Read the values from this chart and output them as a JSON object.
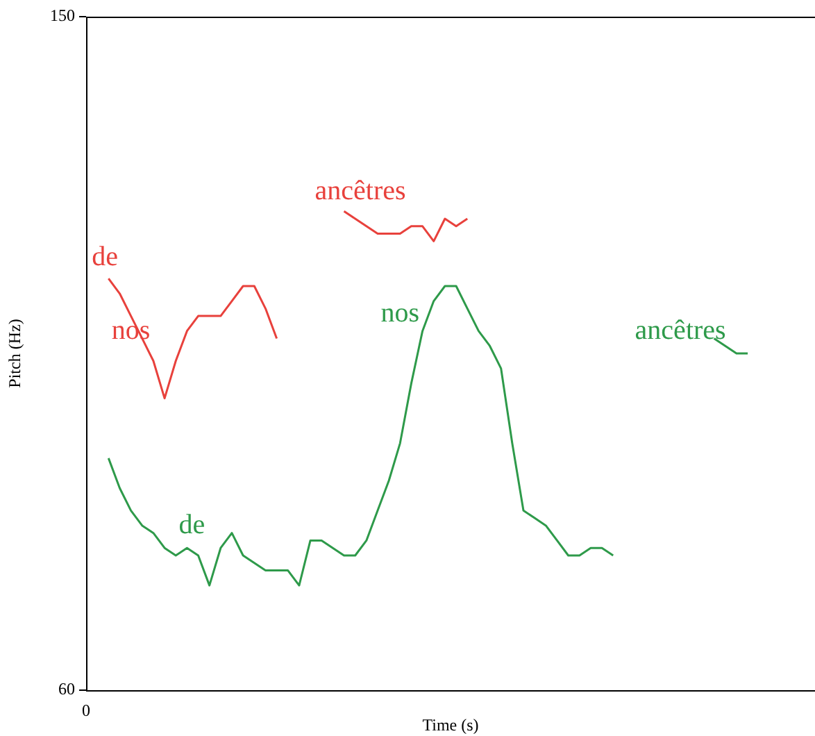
{
  "chart_data": {
    "type": "line",
    "xlabel": "Time (s)",
    "ylabel": "Pitch (Hz)",
    "categories": [
      "0",
      null,
      null,
      null,
      null,
      null,
      null,
      null,
      null,
      null,
      null,
      null,
      null,
      null,
      null,
      null,
      null,
      null,
      null,
      null,
      null,
      null,
      null,
      null,
      null,
      null,
      null,
      null,
      null,
      null,
      null,
      null,
      null,
      null,
      null,
      null,
      null,
      null,
      null,
      null,
      null,
      null,
      null,
      null,
      null,
      null,
      null,
      null,
      null,
      null,
      null,
      null,
      null,
      null,
      null,
      null,
      null,
      null,
      null,
      null,
      null,
      null,
      null,
      null,
      null,
      null
    ],
    "ylim": [
      60,
      150
    ],
    "yticks": [
      60,
      150
    ],
    "grid": false,
    "legend": false,
    "marker": "none",
    "annotations": [
      "de",
      "nos",
      "ancêtres",
      "de",
      "nos",
      "ancêtres"
    ],
    "series": [
      {
        "color": "#e8413c",
        "values": [
          null,
          null,
          115,
          113,
          110,
          107,
          104,
          99,
          104,
          108,
          110,
          110,
          110,
          112,
          114,
          114,
          111,
          107,
          null,
          null,
          null,
          null,
          null,
          null,
          null,
          null,
          null,
          null,
          null,
          null,
          null,
          null,
          null,
          null,
          null,
          null,
          null,
          null,
          null,
          null,
          null,
          null,
          null,
          null,
          null,
          null,
          null,
          null,
          null,
          null,
          null,
          null,
          null,
          null,
          null,
          null,
          null,
          null,
          null,
          null,
          null,
          null,
          null,
          null,
          null,
          null
        ]
      },
      {
        "color": "#e8413c",
        "values": [
          null,
          null,
          null,
          null,
          null,
          null,
          null,
          null,
          null,
          null,
          null,
          null,
          null,
          null,
          null,
          null,
          null,
          null,
          null,
          null,
          null,
          null,
          null,
          124,
          123,
          122,
          121,
          121,
          121,
          122,
          122,
          120,
          123,
          122,
          123,
          null,
          null,
          null,
          null,
          null,
          null,
          null,
          null,
          null,
          null,
          null,
          null,
          null,
          null,
          null,
          null,
          null,
          null,
          null,
          null,
          null,
          null,
          null,
          null,
          null,
          null,
          null,
          null,
          null,
          null,
          null
        ]
      },
      {
        "color": "#2e9a4a",
        "values": [
          null,
          null,
          91,
          87,
          84,
          82,
          81,
          79,
          78,
          79,
          78,
          74,
          79,
          81,
          78,
          77,
          76,
          76,
          76,
          74,
          80,
          80,
          79,
          78,
          78,
          80,
          84,
          88,
          93,
          101,
          108,
          112,
          114,
          114,
          111,
          108,
          106,
          103,
          93,
          84,
          83,
          82,
          80,
          78,
          78,
          79,
          79,
          78,
          null,
          null,
          null,
          null,
          null,
          null,
          null,
          null,
          null,
          null,
          null,
          null,
          null,
          null,
          null,
          null,
          null,
          null
        ]
      },
      {
        "color": "#2e9a4a",
        "values": [
          null,
          null,
          null,
          null,
          null,
          null,
          null,
          null,
          null,
          null,
          null,
          null,
          null,
          null,
          null,
          null,
          null,
          null,
          null,
          null,
          null,
          null,
          null,
          null,
          null,
          null,
          null,
          null,
          null,
          null,
          null,
          null,
          null,
          null,
          null,
          null,
          null,
          null,
          null,
          null,
          null,
          null,
          null,
          null,
          null,
          null,
          null,
          null,
          null,
          null,
          null,
          null,
          null,
          null,
          null,
          null,
          107,
          106,
          105,
          105,
          null,
          null,
          null,
          null,
          null,
          null
        ]
      }
    ]
  }
}
